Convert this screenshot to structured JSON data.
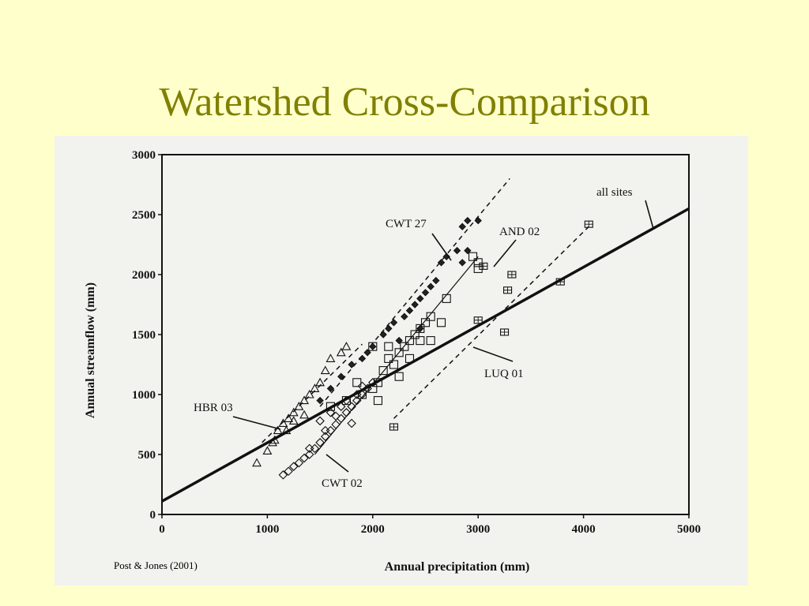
{
  "slide": {
    "title": "Watershed Cross-Comparison",
    "citation": "Post & Jones (2001)"
  },
  "chart_data": {
    "type": "scatter",
    "xlabel": "Annual precipitation (mm)",
    "ylabel": "Annual streamflow (mm)",
    "xlim": [
      0,
      5000
    ],
    "ylim": [
      0,
      3000
    ],
    "xticks": [
      0,
      1000,
      2000,
      3000,
      4000,
      5000
    ],
    "yticks": [
      0,
      500,
      1000,
      1500,
      2000,
      2500,
      3000
    ],
    "grid": false,
    "series": [
      {
        "name": "HBR 03",
        "marker": "triangle",
        "points": [
          [
            900,
            430
          ],
          [
            1000,
            530
          ],
          [
            1050,
            600
          ],
          [
            1070,
            620
          ],
          [
            1100,
            700
          ],
          [
            1150,
            760
          ],
          [
            1200,
            800
          ],
          [
            1250,
            850
          ],
          [
            1300,
            900
          ],
          [
            1350,
            950
          ],
          [
            1400,
            1000
          ],
          [
            1450,
            1050
          ],
          [
            1500,
            1100
          ],
          [
            1550,
            1200
          ],
          [
            1600,
            1300
          ],
          [
            1700,
            1350
          ],
          [
            1750,
            1400
          ],
          [
            1250,
            780
          ],
          [
            1180,
            700
          ],
          [
            1350,
            830
          ]
        ]
      },
      {
        "name": "CWT 27",
        "marker": "filled-diamond",
        "points": [
          [
            1500,
            950
          ],
          [
            1600,
            1050
          ],
          [
            1700,
            1150
          ],
          [
            1800,
            1250
          ],
          [
            1900,
            1300
          ],
          [
            2000,
            1400
          ],
          [
            2100,
            1500
          ],
          [
            2150,
            1550
          ],
          [
            2200,
            1600
          ],
          [
            2300,
            1650
          ],
          [
            2350,
            1700
          ],
          [
            2400,
            1750
          ],
          [
            2450,
            1800
          ],
          [
            2500,
            1850
          ],
          [
            2550,
            1900
          ],
          [
            2600,
            1950
          ],
          [
            2650,
            2100
          ],
          [
            2700,
            2150
          ],
          [
            2800,
            2200
          ],
          [
            2850,
            2400
          ],
          [
            2900,
            2450
          ],
          [
            3000,
            2450
          ],
          [
            2900,
            2200
          ],
          [
            2850,
            2100
          ],
          [
            2450,
            1550
          ],
          [
            2250,
            1450
          ],
          [
            1950,
            1350
          ]
        ]
      },
      {
        "name": "AND 02",
        "marker": "square",
        "points": [
          [
            1600,
            900
          ],
          [
            1750,
            950
          ],
          [
            1900,
            1000
          ],
          [
            2000,
            1050
          ],
          [
            2050,
            1100
          ],
          [
            2100,
            1200
          ],
          [
            2150,
            1300
          ],
          [
            2200,
            1250
          ],
          [
            2250,
            1350
          ],
          [
            2300,
            1400
          ],
          [
            2350,
            1450
          ],
          [
            2400,
            1500
          ],
          [
            2450,
            1550
          ],
          [
            2500,
            1600
          ],
          [
            2550,
            1650
          ],
          [
            2650,
            1600
          ],
          [
            2700,
            1800
          ],
          [
            2950,
            2150
          ],
          [
            3000,
            2050
          ],
          [
            3000,
            2100
          ],
          [
            2150,
            1400
          ],
          [
            2450,
            1450
          ],
          [
            2550,
            1450
          ],
          [
            2350,
            1300
          ],
          [
            2050,
            950
          ],
          [
            2250,
            1150
          ],
          [
            1850,
            1100
          ],
          [
            2000,
            1400
          ]
        ]
      },
      {
        "name": "LUQ 01",
        "marker": "crossed-square",
        "points": [
          [
            2200,
            730
          ],
          [
            3000,
            1620
          ],
          [
            3250,
            1520
          ],
          [
            3280,
            1870
          ],
          [
            3320,
            2000
          ],
          [
            3780,
            1940
          ],
          [
            4050,
            2420
          ],
          [
            3050,
            2070
          ]
        ]
      },
      {
        "name": "CWT 02",
        "marker": "diamond",
        "points": [
          [
            1150,
            330
          ],
          [
            1200,
            360
          ],
          [
            1250,
            400
          ],
          [
            1300,
            430
          ],
          [
            1350,
            470
          ],
          [
            1400,
            500
          ],
          [
            1450,
            550
          ],
          [
            1500,
            600
          ],
          [
            1550,
            650
          ],
          [
            1600,
            700
          ],
          [
            1650,
            750
          ],
          [
            1700,
            800
          ],
          [
            1750,
            850
          ],
          [
            1800,
            900
          ],
          [
            1850,
            950
          ],
          [
            1900,
            1000
          ],
          [
            1950,
            1050
          ],
          [
            2000,
            1100
          ],
          [
            1500,
            780
          ],
          [
            1600,
            850
          ],
          [
            1750,
            950
          ],
          [
            1850,
            1000
          ],
          [
            1700,
            900
          ],
          [
            1550,
            700
          ],
          [
            1400,
            550
          ],
          [
            1650,
            820
          ],
          [
            1800,
            760
          ],
          [
            1900,
            1070
          ]
        ]
      }
    ],
    "fit_lines": [
      {
        "name": "all sites",
        "style": "solid-thick",
        "points": [
          [
            0,
            110
          ],
          [
            5000,
            2550
          ]
        ]
      },
      {
        "name": "CWT 27",
        "style": "dashed",
        "points": [
          [
            1500,
            900
          ],
          [
            3300,
            2800
          ]
        ]
      },
      {
        "name": "AND 02",
        "style": "solid-thin",
        "points": [
          [
            1450,
            500
          ],
          [
            3000,
            2150
          ]
        ]
      },
      {
        "name": "LUQ 01",
        "style": "dashed",
        "points": [
          [
            2200,
            800
          ],
          [
            4050,
            2400
          ]
        ]
      },
      {
        "name": "HBR 03",
        "style": "dashed",
        "points": [
          [
            950,
            600
          ],
          [
            1900,
            1420
          ]
        ]
      }
    ],
    "annotations": [
      {
        "text": "all sites"
      },
      {
        "text": "CWT 27"
      },
      {
        "text": "AND 02"
      },
      {
        "text": "LUQ 01"
      },
      {
        "text": "HBR 03"
      },
      {
        "text": "CWT 02"
      }
    ]
  }
}
